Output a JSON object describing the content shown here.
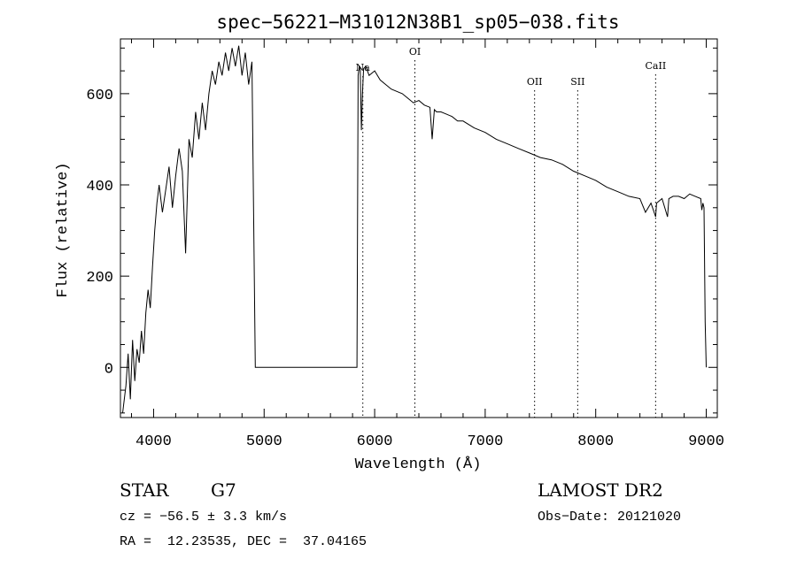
{
  "chart_data": {
    "type": "line",
    "title": "spec−56221−M31012N38B1_sp05−038.fits",
    "xlabel": "Wavelength (Å)",
    "ylabel": "Flux (relative)",
    "xlim": [
      3700,
      9100
    ],
    "ylim": [
      -110,
      720
    ],
    "x_ticks": [
      4000,
      5000,
      6000,
      7000,
      8000,
      9000
    ],
    "x_tick_labels": [
      "4000",
      "5000",
      "6000",
      "7000",
      "8000",
      "9000"
    ],
    "y_ticks": [
      0,
      200,
      400,
      600
    ],
    "y_tick_labels": [
      "0",
      "200",
      "400",
      "600"
    ],
    "grid": false,
    "series": [
      {
        "x": [
          3720,
          3750,
          3770,
          3790,
          3810,
          3830,
          3850,
          3870,
          3890,
          3910,
          3930,
          3950,
          3970,
          3990,
          4010,
          4030,
          4050,
          4080,
          4110,
          4140,
          4170,
          4200,
          4230,
          4260,
          4290,
          4320,
          4350,
          4380,
          4410,
          4440,
          4470,
          4500,
          4530,
          4560,
          4590,
          4620,
          4650,
          4680,
          4710,
          4740,
          4770,
          4800,
          4830,
          4860,
          4890,
          4920,
          4925,
          4935,
          5840,
          5850,
          5860,
          5870,
          5880,
          5890,
          5900,
          5920,
          5950,
          6000,
          6050,
          6100,
          6150,
          6200,
          6250,
          6300,
          6350,
          6400,
          6450,
          6500,
          6520,
          6540,
          6560,
          6600,
          6650,
          6700,
          6750,
          6800,
          6900,
          7000,
          7100,
          7200,
          7300,
          7400,
          7500,
          7600,
          7700,
          7800,
          7900,
          8000,
          8100,
          8200,
          8300,
          8400,
          8450,
          8500,
          8542,
          8550,
          8600,
          8650,
          8662,
          8700,
          8750,
          8800,
          8850,
          8900,
          8950,
          8960,
          8970,
          8980,
          8990,
          9000
        ],
        "y": [
          -100,
          -40,
          30,
          -70,
          60,
          -30,
          40,
          10,
          80,
          30,
          120,
          170,
          130,
          220,
          300,
          360,
          400,
          340,
          390,
          440,
          350,
          420,
          480,
          430,
          250,
          500,
          460,
          560,
          500,
          580,
          520,
          600,
          650,
          620,
          670,
          640,
          690,
          650,
          700,
          660,
          705,
          640,
          690,
          620,
          670,
          0,
          0,
          0,
          0,
          640,
          660,
          650,
          520,
          600,
          655,
          660,
          640,
          650,
          630,
          620,
          610,
          605,
          600,
          590,
          580,
          585,
          575,
          570,
          500,
          565,
          560,
          560,
          555,
          550,
          540,
          540,
          525,
          515,
          500,
          490,
          480,
          470,
          460,
          455,
          445,
          430,
          420,
          410,
          395,
          385,
          375,
          370,
          340,
          360,
          330,
          360,
          370,
          330,
          370,
          375,
          375,
          370,
          380,
          375,
          370,
          345,
          360,
          350,
          100,
          0
        ]
      }
    ],
    "line_markers": [
      {
        "label": "Na",
        "x": 5893
      },
      {
        "label": "OI",
        "x": 6364
      },
      {
        "label": "OII",
        "x": 7447
      },
      {
        "label": "SII",
        "x": 7837
      },
      {
        "label": "CaII",
        "x": 8542
      }
    ]
  },
  "footer": {
    "object_class": "STAR",
    "subclass": "G7",
    "survey": "LAMOST DR2",
    "redshift": "cz = −56.5 ± 3.3 km/s",
    "obs_date": "Obs−Date: 20121020",
    "coords": "RA =  12.23535, DEC =  37.04165"
  }
}
